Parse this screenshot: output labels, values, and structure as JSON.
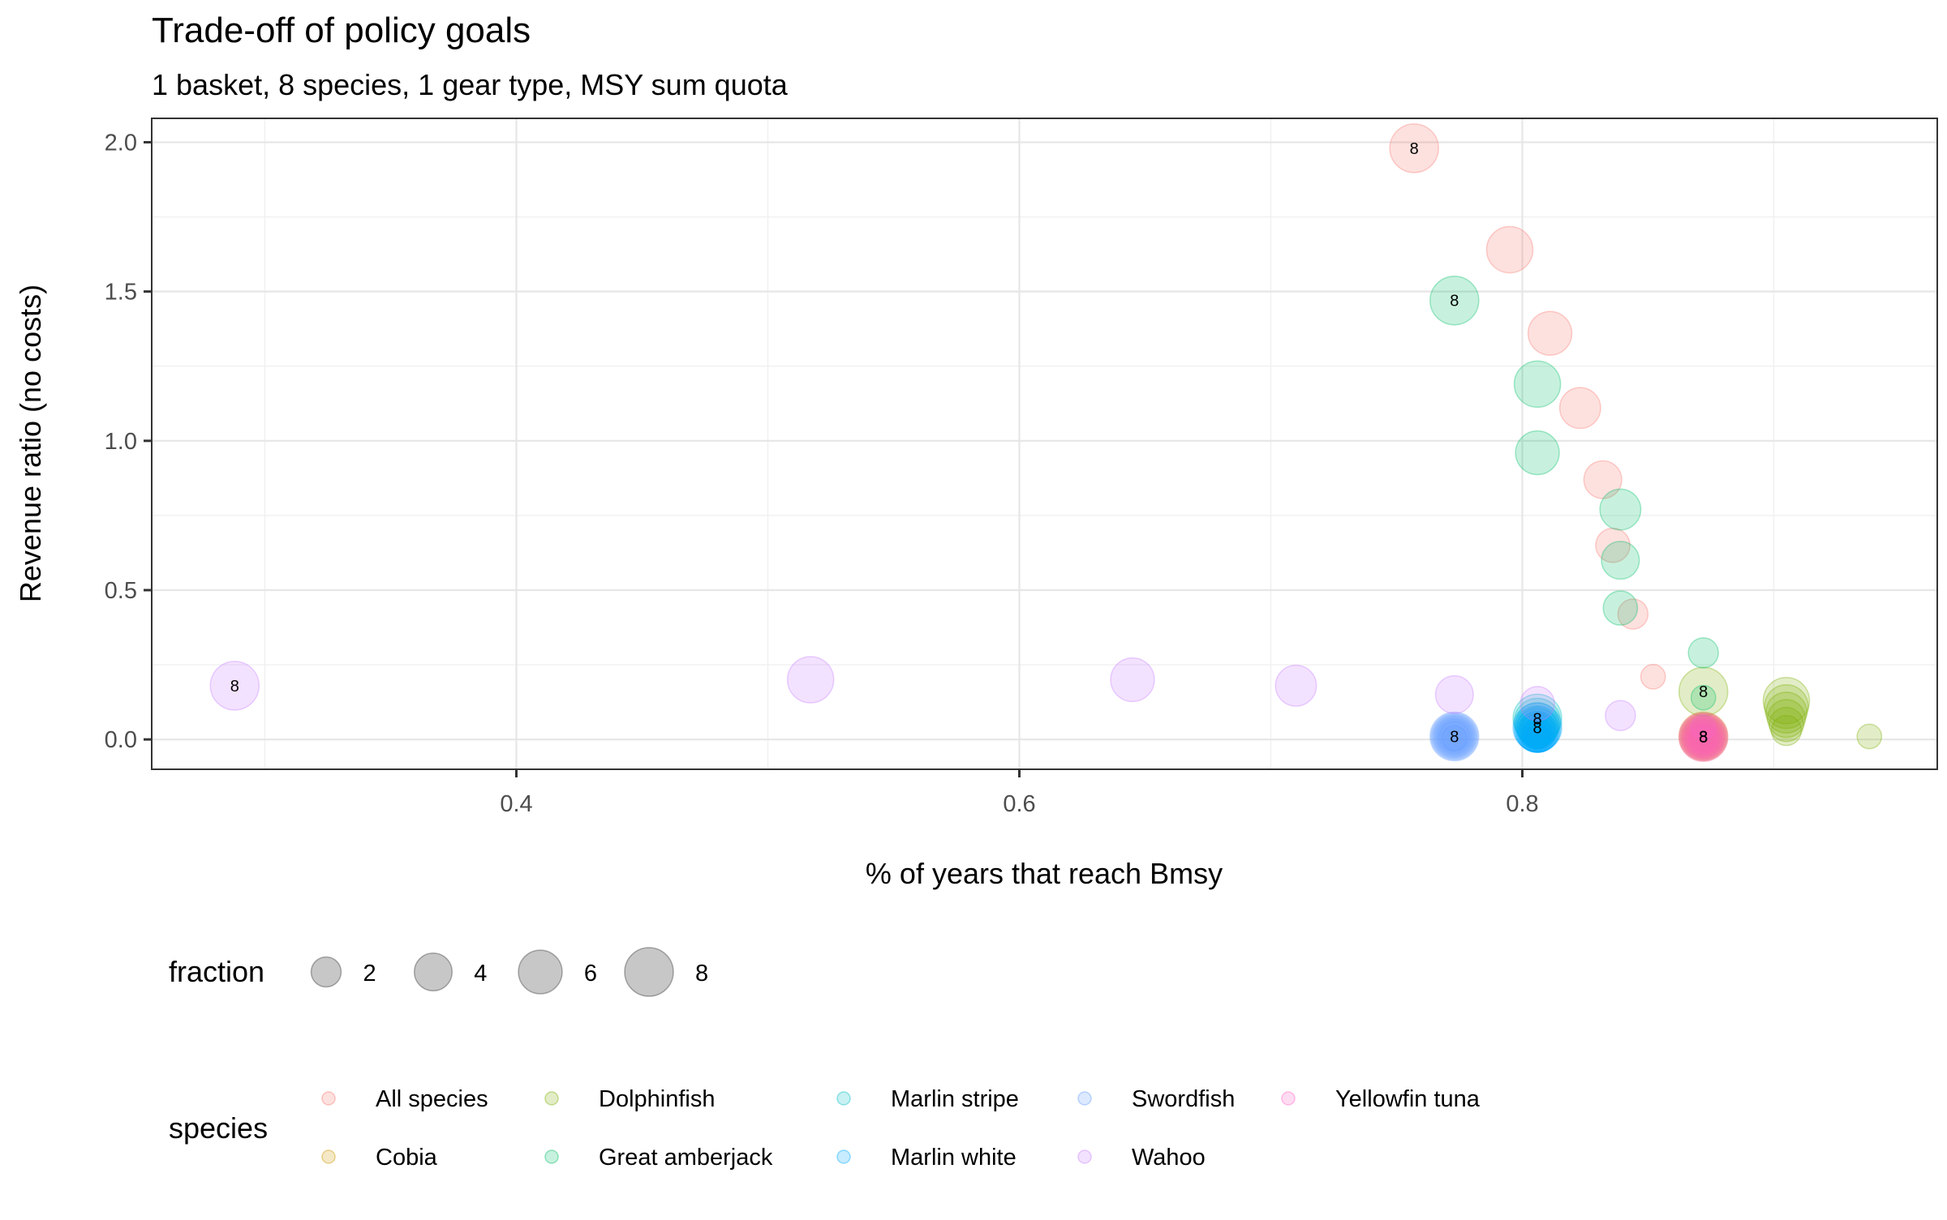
{
  "chart_data": {
    "type": "scatter",
    "title": "Trade-off of policy goals",
    "subtitle": "1 basket, 8 species, 1 gear type, MSY sum quota",
    "xlabel": "% of years that reach Bmsy",
    "ylabel": "Revenue ratio (no costs)",
    "xlim": [
      0.255,
      0.965
    ],
    "ylim": [
      -0.1,
      2.08
    ],
    "x_ticks": [
      0.4,
      0.6,
      0.8
    ],
    "x_tick_labels": [
      "0.4",
      "0.6",
      "0.8"
    ],
    "y_ticks": [
      0.0,
      0.5,
      1.0,
      1.5,
      2.0
    ],
    "y_tick_labels": [
      "0.0",
      "0.5",
      "1.0",
      "1.5",
      "2.0"
    ],
    "grid": true,
    "legend_position": "bottom",
    "size_legend": {
      "title": "fraction",
      "values": [
        2,
        4,
        6,
        8
      ],
      "labels": [
        "2",
        "4",
        "6",
        "8"
      ]
    },
    "color_legend": {
      "title": "species",
      "layout_rows": 2
    },
    "series": [
      {
        "name": "All species",
        "color": "#F8766D",
        "points": [
          {
            "x": 0.757,
            "y": 1.98,
            "size": 8,
            "label": "8"
          },
          {
            "x": 0.795,
            "y": 1.64,
            "size": 7
          },
          {
            "x": 0.811,
            "y": 1.36,
            "size": 6
          },
          {
            "x": 0.823,
            "y": 1.11,
            "size": 5
          },
          {
            "x": 0.832,
            "y": 0.87,
            "size": 4
          },
          {
            "x": 0.836,
            "y": 0.65,
            "size": 3
          },
          {
            "x": 0.844,
            "y": 0.42,
            "size": 2
          },
          {
            "x": 0.852,
            "y": 0.21,
            "size": 1
          }
        ]
      },
      {
        "name": "Cobia",
        "color": "#CD9600",
        "points": [
          {
            "x": 0.872,
            "y": 0.005,
            "size": 1
          },
          {
            "x": 0.872,
            "y": 0.01,
            "size": 2
          },
          {
            "x": 0.872,
            "y": 0.01,
            "size": 3
          },
          {
            "x": 0.872,
            "y": 0.01,
            "size": 4
          },
          {
            "x": 0.872,
            "y": 0.01,
            "size": 5
          },
          {
            "x": 0.872,
            "y": 0.01,
            "size": 6
          },
          {
            "x": 0.872,
            "y": 0.01,
            "size": 7
          },
          {
            "x": 0.872,
            "y": 0.01,
            "size": 8,
            "label": "8"
          }
        ]
      },
      {
        "name": "Dolphinfish",
        "color": "#7CAE00",
        "points": [
          {
            "x": 0.872,
            "y": 0.16,
            "size": 8,
            "label": "8"
          },
          {
            "x": 0.905,
            "y": 0.13,
            "size": 7
          },
          {
            "x": 0.905,
            "y": 0.11,
            "size": 6
          },
          {
            "x": 0.905,
            "y": 0.09,
            "size": 5
          },
          {
            "x": 0.905,
            "y": 0.07,
            "size": 4
          },
          {
            "x": 0.905,
            "y": 0.05,
            "size": 3
          },
          {
            "x": 0.905,
            "y": 0.03,
            "size": 2
          },
          {
            "x": 0.938,
            "y": 0.01,
            "size": 1
          }
        ]
      },
      {
        "name": "Great amberjack",
        "color": "#00BE67",
        "points": [
          {
            "x": 0.773,
            "y": 1.47,
            "size": 8,
            "label": "8"
          },
          {
            "x": 0.806,
            "y": 1.19,
            "size": 7
          },
          {
            "x": 0.806,
            "y": 0.96,
            "size": 6
          },
          {
            "x": 0.839,
            "y": 0.77,
            "size": 5
          },
          {
            "x": 0.839,
            "y": 0.6,
            "size": 4
          },
          {
            "x": 0.839,
            "y": 0.44,
            "size": 3
          },
          {
            "x": 0.872,
            "y": 0.29,
            "size": 2
          },
          {
            "x": 0.872,
            "y": 0.14,
            "size": 1
          }
        ]
      },
      {
        "name": "Marlin stripe",
        "color": "#00BFC4",
        "points": [
          {
            "x": 0.806,
            "y": 0.07,
            "size": 8,
            "label": "8"
          },
          {
            "x": 0.806,
            "y": 0.06,
            "size": 7
          },
          {
            "x": 0.806,
            "y": 0.05,
            "size": 6
          },
          {
            "x": 0.806,
            "y": 0.04,
            "size": 5
          },
          {
            "x": 0.806,
            "y": 0.03,
            "size": 4
          },
          {
            "x": 0.806,
            "y": 0.03,
            "size": 3
          },
          {
            "x": 0.806,
            "y": 0.02,
            "size": 2
          },
          {
            "x": 0.806,
            "y": 0.01,
            "size": 1
          }
        ]
      },
      {
        "name": "Marlin white",
        "color": "#00A9FF",
        "points": [
          {
            "x": 0.806,
            "y": 0.04,
            "size": 8,
            "label": "8"
          },
          {
            "x": 0.806,
            "y": 0.035,
            "size": 7
          },
          {
            "x": 0.806,
            "y": 0.03,
            "size": 6
          },
          {
            "x": 0.806,
            "y": 0.025,
            "size": 5
          },
          {
            "x": 0.806,
            "y": 0.02,
            "size": 4
          },
          {
            "x": 0.806,
            "y": 0.015,
            "size": 3
          },
          {
            "x": 0.806,
            "y": 0.01,
            "size": 2
          },
          {
            "x": 0.806,
            "y": 0.005,
            "size": 1
          }
        ]
      },
      {
        "name": "Swordfish",
        "color": "#619CFF",
        "points": [
          {
            "x": 0.773,
            "y": 0.01,
            "size": 8,
            "label": "8"
          },
          {
            "x": 0.773,
            "y": 0.01,
            "size": 7
          },
          {
            "x": 0.773,
            "y": 0.01,
            "size": 6
          },
          {
            "x": 0.773,
            "y": 0.01,
            "size": 5
          },
          {
            "x": 0.773,
            "y": 0.01,
            "size": 4
          },
          {
            "x": 0.773,
            "y": 0.01,
            "size": 3
          },
          {
            "x": 0.773,
            "y": 0.01,
            "size": 2
          },
          {
            "x": 0.773,
            "y": 0.005,
            "size": 1
          }
        ]
      },
      {
        "name": "Wahoo",
        "color": "#C77CFF",
        "points": [
          {
            "x": 0.288,
            "y": 0.18,
            "size": 8,
            "label": "8"
          },
          {
            "x": 0.517,
            "y": 0.2,
            "size": 7
          },
          {
            "x": 0.645,
            "y": 0.2,
            "size": 6
          },
          {
            "x": 0.71,
            "y": 0.18,
            "size": 5
          },
          {
            "x": 0.773,
            "y": 0.15,
            "size": 4
          },
          {
            "x": 0.806,
            "y": 0.12,
            "size": 3
          },
          {
            "x": 0.839,
            "y": 0.08,
            "size": 2
          },
          {
            "x": 0.872,
            "y": 0.04,
            "size": 1
          }
        ]
      },
      {
        "name": "Yellowfin tuna",
        "color": "#FF61C3",
        "points": [
          {
            "x": 0.872,
            "y": 0.008,
            "size": 8,
            "label": "8"
          },
          {
            "x": 0.872,
            "y": 0.008,
            "size": 7
          },
          {
            "x": 0.872,
            "y": 0.007,
            "size": 6
          },
          {
            "x": 0.872,
            "y": 0.006,
            "size": 5
          },
          {
            "x": 0.872,
            "y": 0.005,
            "size": 4
          },
          {
            "x": 0.872,
            "y": 0.004,
            "size": 3
          },
          {
            "x": 0.872,
            "y": 0.003,
            "size": 2
          },
          {
            "x": 0.872,
            "y": 0.002,
            "size": 1
          }
        ]
      }
    ]
  }
}
